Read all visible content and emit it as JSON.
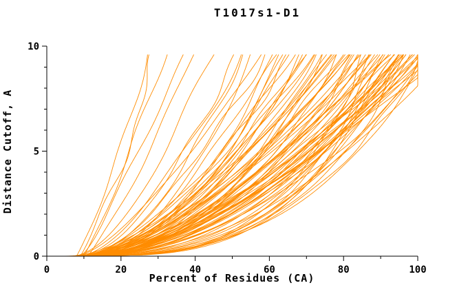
{
  "page": {
    "background": "#ffffff"
  },
  "chart_data": {
    "type": "line",
    "title": "T1017s1-D1",
    "xlabel": "Percent of Residues (CA)",
    "ylabel": "Distance Cutoff, A",
    "xlim": [
      0,
      100
    ],
    "ylim": [
      0,
      10
    ],
    "x_ticks_major": [
      0,
      20,
      40,
      60,
      80,
      100
    ],
    "x_minor_step": 10,
    "y_ticks_major": [
      0,
      5,
      10
    ],
    "y_minor_step": 1,
    "grid": false,
    "legend": "none",
    "curve_color": "#ff8c00",
    "axis_color": "#000000",
    "y_curve_max": 9.6,
    "seed": 1017,
    "curve_model": "x(y) = x0 + (x1-x0)*(y/9.6)^p + small wiggle; each curve row is [x0, x1, p]",
    "curves": [
      [
        8,
        28,
        0.9
      ],
      [
        9,
        30,
        0.85
      ],
      [
        10,
        33,
        0.95
      ],
      [
        9,
        36,
        0.8
      ],
      [
        11,
        40,
        0.88
      ],
      [
        7,
        45,
        0.6
      ],
      [
        8,
        50,
        0.55
      ],
      [
        9,
        52,
        0.65
      ],
      [
        10,
        55,
        0.5
      ],
      [
        8,
        57,
        0.7
      ],
      [
        9,
        60,
        0.45
      ],
      [
        10,
        62,
        0.6
      ],
      [
        11,
        64,
        0.55
      ],
      [
        8,
        65,
        0.5
      ],
      [
        9,
        67,
        0.65
      ],
      [
        10,
        68,
        0.45
      ],
      [
        7,
        70,
        0.55
      ],
      [
        8,
        71,
        0.6
      ],
      [
        9,
        72,
        0.5
      ],
      [
        10,
        73,
        0.65
      ],
      [
        11,
        74,
        0.45
      ],
      [
        8,
        75,
        0.55
      ],
      [
        9,
        76,
        0.6
      ],
      [
        10,
        77,
        0.5
      ],
      [
        7,
        78,
        0.65
      ],
      [
        8,
        79,
        0.45
      ],
      [
        9,
        80,
        0.55
      ],
      [
        10,
        81,
        0.6
      ],
      [
        11,
        82,
        0.5
      ],
      [
        8,
        83,
        0.65
      ],
      [
        9,
        84,
        0.45
      ],
      [
        10,
        85,
        0.55
      ],
      [
        7,
        86,
        0.6
      ],
      [
        8,
        87,
        0.5
      ],
      [
        9,
        88,
        0.65
      ],
      [
        10,
        89,
        0.45
      ],
      [
        11,
        90,
        0.55
      ],
      [
        8,
        91,
        0.6
      ],
      [
        9,
        92,
        0.5
      ],
      [
        10,
        93,
        0.65
      ],
      [
        7,
        94,
        0.45
      ],
      [
        8,
        95,
        0.55
      ],
      [
        9,
        96,
        0.6
      ],
      [
        10,
        97,
        0.5
      ],
      [
        11,
        98,
        0.65
      ],
      [
        8,
        99,
        0.45
      ],
      [
        9,
        100,
        0.55
      ],
      [
        10,
        100,
        0.6
      ],
      [
        7,
        100,
        0.5
      ],
      [
        8,
        100,
        0.65
      ],
      [
        9,
        102,
        0.4
      ],
      [
        6,
        104,
        0.35
      ],
      [
        10,
        103,
        0.55
      ],
      [
        9,
        105,
        0.5
      ],
      [
        8,
        106,
        0.45
      ],
      [
        10,
        104,
        0.6
      ],
      [
        11,
        107,
        0.65
      ],
      [
        9,
        101,
        0.35
      ],
      [
        7,
        97,
        0.35
      ],
      [
        8,
        93,
        0.3
      ],
      [
        9,
        95,
        0.38
      ],
      [
        10,
        90,
        0.32
      ],
      [
        6,
        88,
        0.36
      ],
      [
        7,
        92,
        0.3
      ],
      [
        8,
        98,
        0.34
      ],
      [
        9,
        86,
        0.3
      ],
      [
        5,
        96,
        0.33
      ],
      [
        6,
        94,
        0.37
      ],
      [
        8,
        52,
        0.5
      ],
      [
        9,
        58,
        0.6
      ],
      [
        10,
        63,
        0.48
      ],
      [
        8,
        66,
        0.58
      ],
      [
        9,
        69,
        0.52
      ],
      [
        10,
        72,
        0.62
      ],
      [
        8,
        74,
        0.47
      ],
      [
        9,
        77,
        0.57
      ],
      [
        10,
        79,
        0.5
      ],
      [
        8,
        81,
        0.6
      ],
      [
        9,
        83,
        0.45
      ],
      [
        10,
        85,
        0.63
      ],
      [
        8,
        87,
        0.52
      ],
      [
        9,
        89,
        0.58
      ],
      [
        10,
        91,
        0.47
      ],
      [
        8,
        93,
        0.55
      ],
      [
        9,
        95,
        0.5
      ],
      [
        10,
        96,
        0.6
      ],
      [
        8,
        97,
        0.45
      ],
      [
        9,
        98,
        0.55
      ],
      [
        10,
        99,
        0.5
      ],
      [
        9,
        100,
        0.58
      ]
    ]
  }
}
